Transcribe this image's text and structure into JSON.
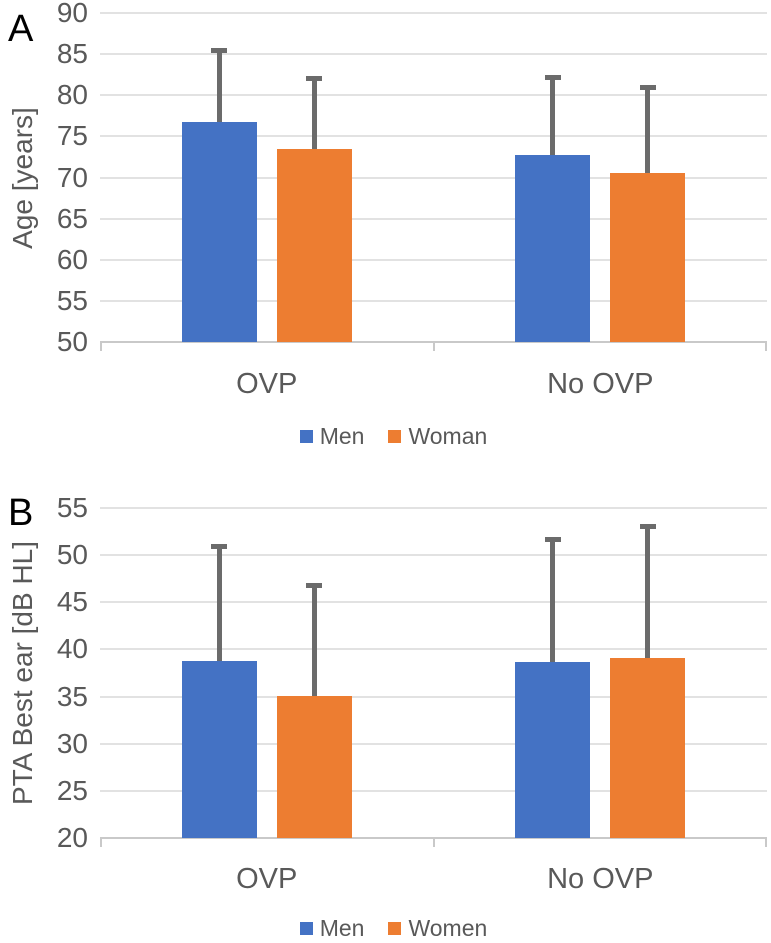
{
  "chart_data": [
    {
      "type": "bar",
      "panel_label": "A",
      "title": "",
      "xlabel": "",
      "ylabel": "Age [years]",
      "ylim": [
        50,
        90
      ],
      "ytick_step": 5,
      "grid": true,
      "legend_position": "bottom",
      "error_bars": "upper whiskers (mean + SD)",
      "categories": [
        "OVP",
        "No OVP"
      ],
      "series": [
        {
          "name": "Men",
          "color": "#4472C4",
          "values": [
            76.8,
            72.7
          ],
          "error_top": [
            85.8,
            82.5
          ]
        },
        {
          "name": "Woman",
          "color": "#ED7D31",
          "values": [
            73.5,
            70.5
          ],
          "error_top": [
            82.3,
            81.3
          ]
        }
      ]
    },
    {
      "type": "bar",
      "panel_label": "B",
      "title": "",
      "xlabel": "",
      "ylabel": "PTA Best ear [dB HL]",
      "ylim": [
        20,
        55
      ],
      "ytick_step": 5,
      "grid": true,
      "legend_position": "bottom",
      "error_bars": "upper whiskers (mean + SD)",
      "categories": [
        "OVP",
        "No OVP"
      ],
      "series": [
        {
          "name": "Men",
          "color": "#4472C4",
          "values": [
            38.8,
            38.7
          ],
          "error_top": [
            51.2,
            51.9
          ]
        },
        {
          "name": "Women",
          "color": "#ED7D31",
          "values": [
            35.1,
            39.1
          ],
          "error_top": [
            47.0,
            53.3
          ]
        }
      ]
    }
  ],
  "style": {
    "men_color": "#4472C4",
    "women_color": "#ED7D31",
    "error_bar_color": "#6b6b6b",
    "gridline_color": "#e2e2e2",
    "axis_line_color": "#c9c9c9",
    "text_color": "#595959",
    "panel_letter_color": "#000000",
    "background": "#ffffff"
  }
}
